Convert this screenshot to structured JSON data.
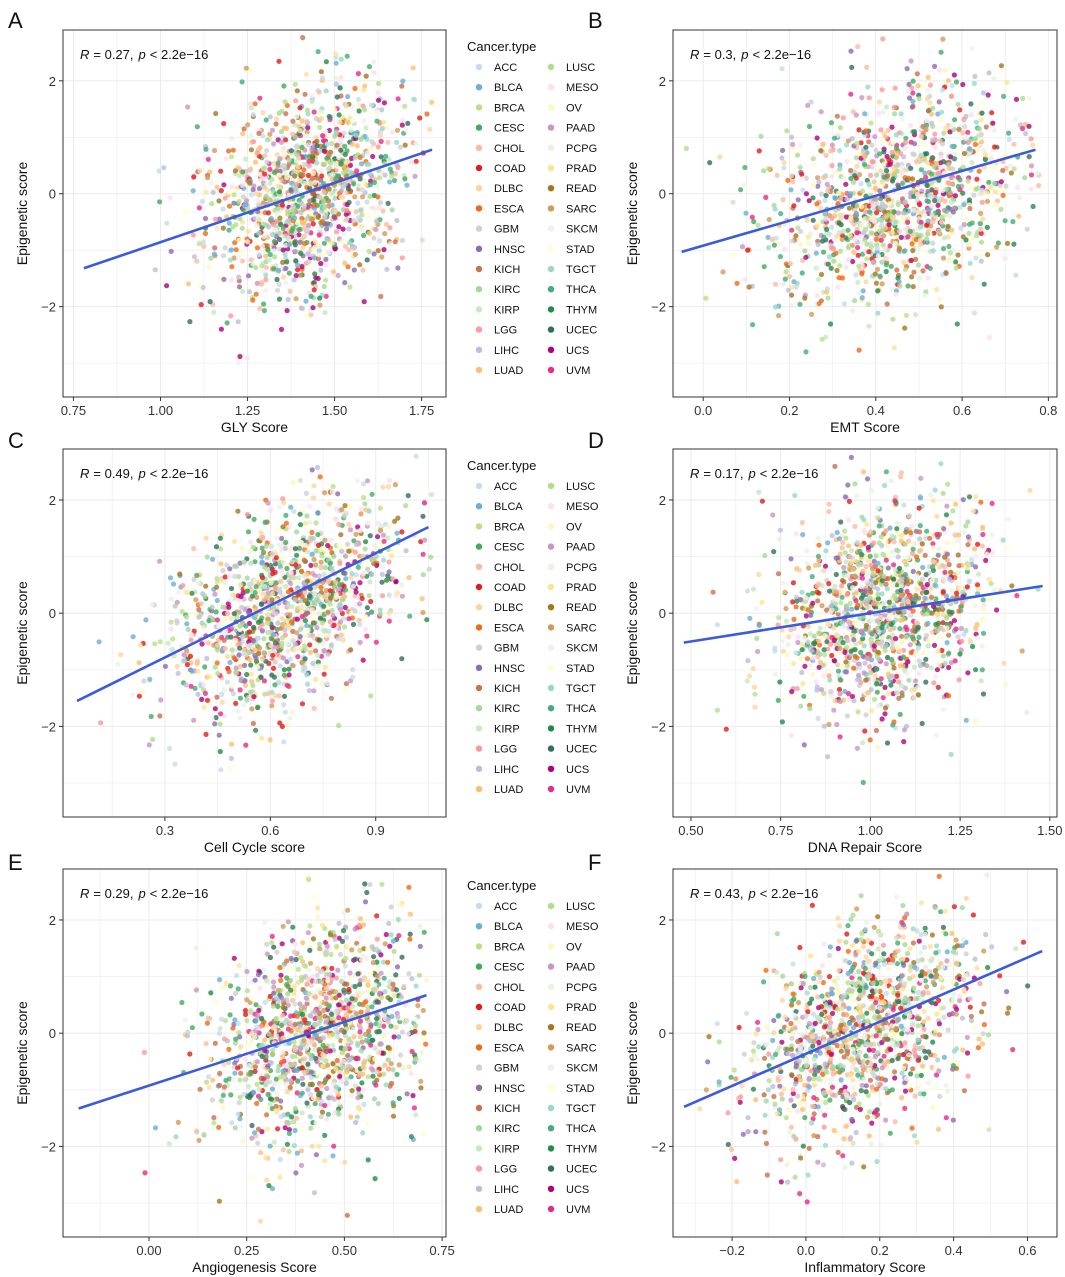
{
  "figure": {
    "legend": {
      "title": "Cancer.type",
      "entries": [
        "ACC",
        "BLCA",
        "BRCA",
        "CESC",
        "CHOL",
        "COAD",
        "DLBC",
        "ESCA",
        "GBM",
        "HNSC",
        "KICH",
        "KIRC",
        "KIRP",
        "LGG",
        "LIHC",
        "LUAD",
        "LUSC",
        "MESO",
        "OV",
        "PAAD",
        "PCPG",
        "PRAD",
        "READ",
        "SARC",
        "SKCM",
        "STAD",
        "TGCT",
        "THCA",
        "THYM",
        "UCEC",
        "UCS",
        "UVM"
      ],
      "colors": [
        "#c6dbef",
        "#6baed6",
        "#b8e186",
        "#41ab5d",
        "#fcbba1",
        "#e31a1c",
        "#fdd49e",
        "#f16913",
        "#d0d0d0",
        "#8c6bb1",
        "#c9714b",
        "#a1d99b",
        "#c7e9c0",
        "#fb9a99",
        "#bcbddc",
        "#fdbf6f",
        "#addd8e",
        "#fde0ef",
        "#fff7bc",
        "#c994c7",
        "#e5f5e0",
        "#fee391",
        "#a6761d",
        "#d49a55",
        "#f0f0f0",
        "#ffffcc",
        "#99d8c9",
        "#41ae76",
        "#238b45",
        "#2f6f5e",
        "#ae017e",
        "#e7298a"
      ]
    },
    "regression_color": "#3b5bdb"
  },
  "chart_data": [
    {
      "panel": "A",
      "type": "scatter",
      "xlabel": "GLY Score",
      "ylabel": "Epigenetic score",
      "annotation": {
        "r_label": "R",
        "r_value": "= 0.27,",
        "p_label": "p",
        "p_value": "< 2.2e−16"
      },
      "xlim": [
        0.72,
        1.82
      ],
      "ylim": [
        -3.6,
        2.9
      ],
      "xticks": [
        0.75,
        1.0,
        1.25,
        1.5,
        1.75
      ],
      "xtick_labels": [
        "0.75",
        "1.00",
        "1.25",
        "1.50",
        "1.75"
      ],
      "yticks": [
        -2,
        0,
        2
      ],
      "ytick_labels": [
        "−2",
        "0",
        "2"
      ],
      "fit": {
        "x": [
          0.78,
          1.78
        ],
        "y": [
          -1.32,
          0.78
        ]
      },
      "cluster": {
        "cx": 1.4,
        "sx": 0.14,
        "cy": 0.1,
        "sy": 0.95,
        "xmin": 0.8,
        "xmax": 1.78,
        "corr": 0.27
      },
      "show_legend": true
    },
    {
      "panel": "B",
      "type": "scatter",
      "xlabel": "EMT Score",
      "ylabel": "Epigenetic score",
      "annotation": {
        "r_label": "R",
        "r_value": "= 0.3,",
        "p_label": "p",
        "p_value": "< 2.2e−16"
      },
      "xlim": [
        -0.07,
        0.82
      ],
      "ylim": [
        -3.6,
        2.9
      ],
      "xticks": [
        0.0,
        0.2,
        0.4,
        0.6,
        0.8
      ],
      "xtick_labels": [
        "0.0",
        "0.2",
        "0.4",
        "0.6",
        "0.8"
      ],
      "yticks": [
        -2,
        0,
        2
      ],
      "ytick_labels": [
        "−2",
        "0",
        "2"
      ],
      "fit": {
        "x": [
          -0.05,
          0.77
        ],
        "y": [
          -1.03,
          0.78
        ]
      },
      "cluster": {
        "cx": 0.42,
        "sx": 0.15,
        "cy": 0.0,
        "sy": 0.95,
        "xmin": -0.05,
        "xmax": 0.78,
        "corr": 0.3
      },
      "show_legend": false
    },
    {
      "panel": "C",
      "type": "scatter",
      "xlabel": "Cell Cycle score",
      "ylabel": "Epigenetic score",
      "annotation": {
        "r_label": "R",
        "r_value": "= 0.49,",
        "p_label": "p",
        "p_value": "< 2.2e−16"
      },
      "xlim": [
        0.01,
        1.1
      ],
      "ylim": [
        -3.6,
        2.9
      ],
      "xticks": [
        0.3,
        0.6,
        0.9
      ],
      "xtick_labels": [
        "0.3",
        "0.6",
        "0.9"
      ],
      "yticks": [
        -2,
        0,
        2
      ],
      "ytick_labels": [
        "−2",
        "0",
        "2"
      ],
      "fit": {
        "x": [
          0.05,
          1.05
        ],
        "y": [
          -1.55,
          1.52
        ]
      },
      "cluster": {
        "cx": 0.6,
        "sx": 0.17,
        "cy": 0.1,
        "sy": 0.95,
        "xmin": 0.05,
        "xmax": 1.06,
        "corr": 0.49
      },
      "show_legend": true
    },
    {
      "panel": "D",
      "type": "scatter",
      "xlabel": "DNA Repair Score",
      "ylabel": "Epigenetic score",
      "annotation": {
        "r_label": "R",
        "r_value": "= 0.17,",
        "p_label": "p",
        "p_value": "< 2.2e−16"
      },
      "xlim": [
        0.45,
        1.52
      ],
      "ylim": [
        -3.6,
        2.9
      ],
      "xticks": [
        0.5,
        0.75,
        1.0,
        1.25,
        1.5
      ],
      "xtick_labels": [
        "0.50",
        "0.75",
        "1.00",
        "1.25",
        "1.50"
      ],
      "yticks": [
        -2,
        0,
        2
      ],
      "ytick_labels": [
        "−2",
        "0",
        "2"
      ],
      "fit": {
        "x": [
          0.48,
          1.48
        ],
        "y": [
          -0.52,
          0.48
        ]
      },
      "cluster": {
        "cx": 1.0,
        "sx": 0.15,
        "cy": 0.05,
        "sy": 0.95,
        "xmin": 0.48,
        "xmax": 1.47,
        "corr": 0.17
      },
      "show_legend": false
    },
    {
      "panel": "E",
      "type": "scatter",
      "xlabel": "Angiogenesis Score",
      "ylabel": "Epigenetic score",
      "annotation": {
        "r_label": "R",
        "r_value": "= 0.29,",
        "p_label": "p",
        "p_value": "< 2.2e−16"
      },
      "xlim": [
        -0.22,
        0.76
      ],
      "ylim": [
        -3.6,
        2.9
      ],
      "xticks": [
        0.0,
        0.25,
        0.5,
        0.75
      ],
      "xtick_labels": [
        "0.00",
        "0.25",
        "0.50",
        "0.75"
      ],
      "yticks": [
        -2,
        0,
        2
      ],
      "ytick_labels": [
        "−2",
        "0",
        "2"
      ],
      "fit": {
        "x": [
          -0.18,
          0.71
        ],
        "y": [
          -1.33,
          0.67
        ]
      },
      "cluster": {
        "cx": 0.4,
        "sx": 0.14,
        "cy": 0.0,
        "sy": 0.95,
        "xmin": -0.18,
        "xmax": 0.71,
        "corr": 0.29
      },
      "show_legend": true
    },
    {
      "panel": "F",
      "type": "scatter",
      "xlabel": "Inflammatory Score",
      "ylabel": "Epigenetic score",
      "annotation": {
        "r_label": "R",
        "r_value": "= 0.43,",
        "p_label": "p",
        "p_value": "< 2.2e−16"
      },
      "xlim": [
        -0.36,
        0.68
      ],
      "ylim": [
        -3.6,
        2.9
      ],
      "xticks": [
        -0.2,
        0.0,
        0.2,
        0.4,
        0.6
      ],
      "xtick_labels": [
        "−0.2",
        "0.0",
        "0.2",
        "0.4",
        "0.6"
      ],
      "yticks": [
        -2,
        0,
        2
      ],
      "ytick_labels": [
        "−2",
        "0",
        "2"
      ],
      "fit": {
        "x": [
          -0.33,
          0.64
        ],
        "y": [
          -1.3,
          1.45
        ]
      },
      "cluster": {
        "cx": 0.12,
        "sx": 0.16,
        "cy": 0.05,
        "sy": 0.95,
        "xmin": -0.33,
        "xmax": 0.64,
        "corr": 0.43
      },
      "show_legend": false
    }
  ]
}
